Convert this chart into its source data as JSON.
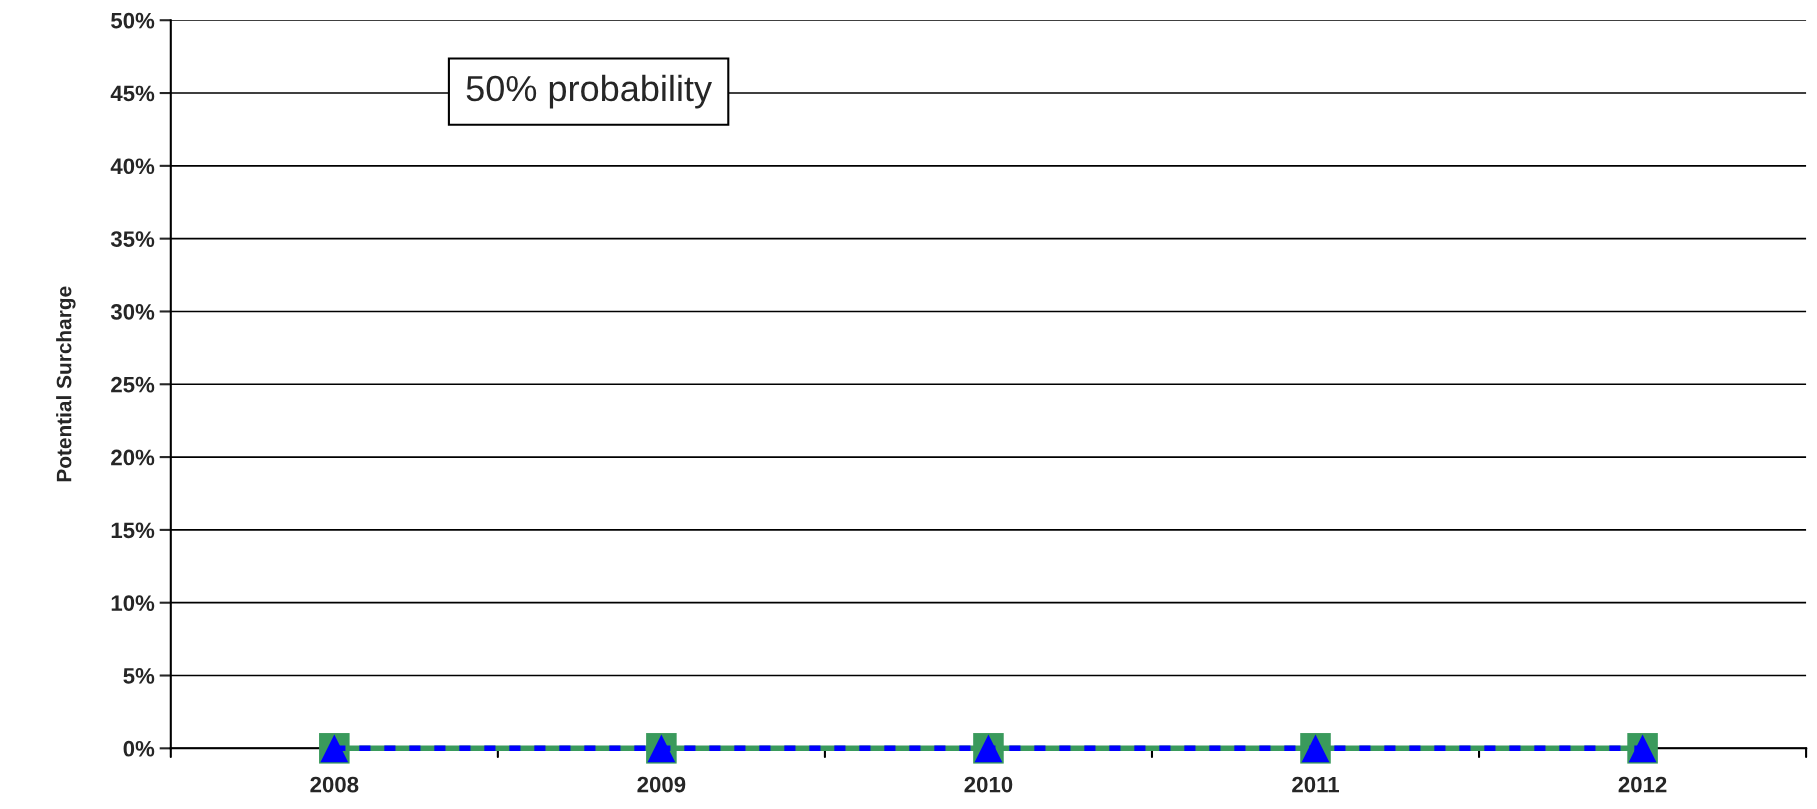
{
  "chart_data": {
    "type": "line",
    "ylabel": "Potential Surcharge",
    "categories": [
      "2008",
      "2009",
      "2010",
      "2011",
      "2012"
    ],
    "series": [
      {
        "color": "#3a9a5c",
        "values": [
          0,
          0,
          0,
          0,
          0
        ],
        "marker": "square",
        "line_style": "solid"
      },
      {
        "color": "#0000ff",
        "values": [
          0,
          0,
          0,
          0,
          0
        ],
        "marker": "triangle",
        "line_style": "dashed"
      }
    ],
    "ylim": [
      0,
      50
    ],
    "yticks": [
      {
        "value": 0,
        "label": "0%"
      },
      {
        "value": 5,
        "label": "5%"
      },
      {
        "value": 10,
        "label": "10%"
      },
      {
        "value": 15,
        "label": "15%"
      },
      {
        "value": 20,
        "label": "20%"
      },
      {
        "value": 25,
        "label": "25%"
      },
      {
        "value": 30,
        "label": "30%"
      },
      {
        "value": 35,
        "label": "35%"
      },
      {
        "value": 40,
        "label": "40%"
      },
      {
        "value": 45,
        "label": "45%"
      },
      {
        "value": 50,
        "label": "50%"
      }
    ],
    "grid": "y",
    "annotations": [
      "50% probability"
    ]
  }
}
